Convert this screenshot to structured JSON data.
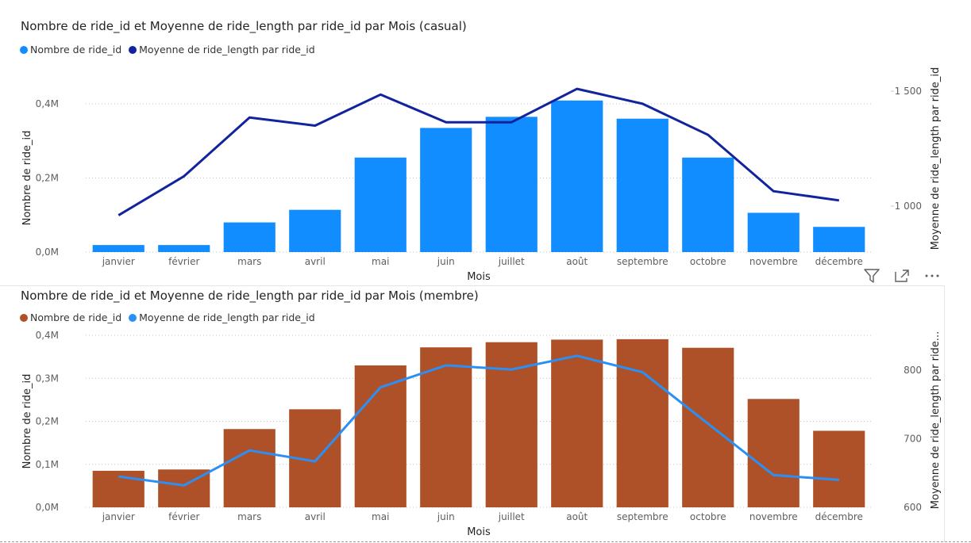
{
  "charts": [
    {
      "title": "Nombre de ride_id et Moyenne de ride_length par ride_id par Mois (casual)",
      "legend": [
        {
          "label": "Nombre de ride_id",
          "color": "#118DFF"
        },
        {
          "label": "Moyenne de ride_length par ride_id",
          "color": "#12239E"
        }
      ],
      "xlabel": "Mois",
      "ylabel_left": "Nombre de ride_id",
      "ylabel_right": "Moyenne de ride_length par ride_id",
      "yticks_left": [
        "0,0M",
        "0,2M",
        "0,4M"
      ],
      "yticks_right": [
        "1 000",
        "1 500"
      ]
    },
    {
      "title": "Nombre de ride_id et Moyenne de ride_length par ride_id par Mois (membre)",
      "legend": [
        {
          "label": "Nombre de ride_id",
          "color": "#AE5128"
        },
        {
          "label": "Moyenne de ride_length par ride_id",
          "color": "#2B90F5"
        }
      ],
      "xlabel": "Mois",
      "ylabel_left": "Nombre de ride_id",
      "ylabel_right": "Moyenne de ride_length par ride...",
      "yticks_left": [
        "0,0M",
        "0,1M",
        "0,2M",
        "0,3M",
        "0,4M"
      ],
      "yticks_right": [
        "600",
        "700",
        "800"
      ]
    }
  ],
  "chart_data": [
    {
      "type": "bar",
      "title": "Nombre de ride_id et Moyenne de ride_length par ride_id par Mois (casual)",
      "categories": [
        "janvier",
        "février",
        "mars",
        "avril",
        "mai",
        "juin",
        "juillet",
        "août",
        "septembre",
        "octobre",
        "novembre",
        "décembre"
      ],
      "series": [
        {
          "name": "Nombre de ride_id",
          "type": "bar",
          "axis": "left",
          "color": "#118DFF",
          "values": [
            19000,
            19000,
            80000,
            114000,
            255000,
            335000,
            365000,
            409000,
            360000,
            255000,
            106000,
            68000
          ]
        },
        {
          "name": "Moyenne de ride_length par ride_id",
          "type": "line",
          "axis": "right",
          "color": "#12239E",
          "values": [
            960,
            1130,
            1385,
            1350,
            1485,
            1365,
            1365,
            1510,
            1445,
            1310,
            1065,
            1025
          ]
        }
      ],
      "xlabel": "Mois",
      "ylabel": "Nombre de ride_id",
      "ylabel_right": "Moyenne de ride_length par ride_id",
      "ylim": [
        0,
        400000
      ],
      "ylim_right": [
        1000,
        1500
      ],
      "grid": true,
      "legend_position": "top-left"
    },
    {
      "type": "bar",
      "title": "Nombre de ride_id et Moyenne de ride_length par ride_id par Mois (membre)",
      "categories": [
        "janvier",
        "février",
        "mars",
        "avril",
        "mai",
        "juin",
        "juillet",
        "août",
        "septembre",
        "octobre",
        "novembre",
        "décembre"
      ],
      "series": [
        {
          "name": "Nombre de ride_id",
          "type": "bar",
          "axis": "left",
          "color": "#AE5128",
          "values": [
            85000,
            88000,
            182000,
            228000,
            330000,
            372000,
            384000,
            390000,
            391000,
            371000,
            252000,
            178000
          ]
        },
        {
          "name": "Moyenne de ride_length par ride_id",
          "type": "line",
          "axis": "right",
          "color": "#2B90F5",
          "values": [
            645,
            632,
            683,
            667,
            775,
            807,
            801,
            821,
            797,
            722,
            647,
            640
          ]
        }
      ],
      "xlabel": "Mois",
      "ylabel": "Nombre de ride_id",
      "ylabel_right": "Moyenne de ride_length par ride_id",
      "ylim": [
        0,
        400000
      ],
      "ylim_right": [
        600,
        800
      ],
      "grid": true,
      "legend_position": "top-left"
    }
  ]
}
